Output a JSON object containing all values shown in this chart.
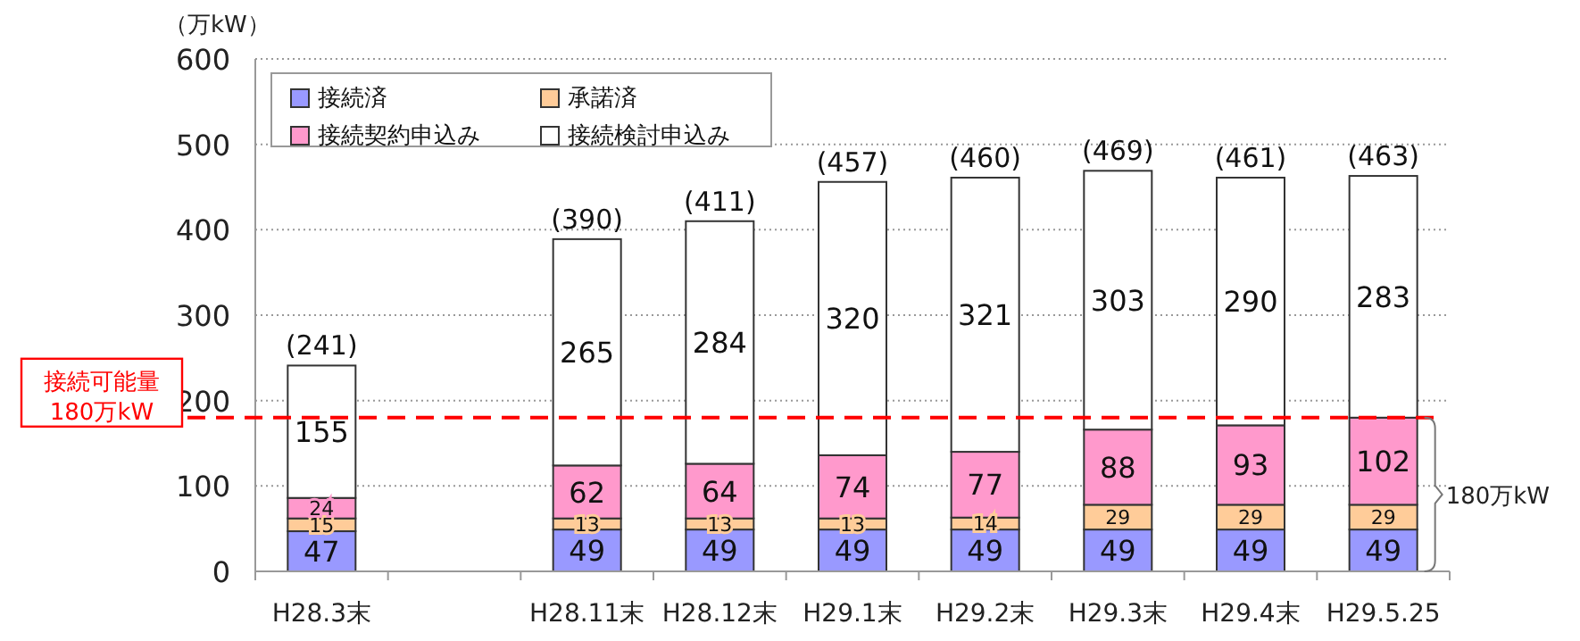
{
  "chart_data": {
    "type": "bar",
    "stacked": true,
    "ylabel": "（万kW）",
    "categories": [
      "H28.3末",
      null,
      "H28.11末",
      "H28.12末",
      "H29.1末",
      "H29.2末",
      "H29.3末",
      "H29.4末",
      "H29.5.25"
    ],
    "series": [
      {
        "name": "接続済",
        "color": "#9999ff",
        "values": [
          47,
          null,
          49,
          49,
          49,
          49,
          49,
          49,
          49
        ]
      },
      {
        "name": "承諾済",
        "color": "#ffcc99",
        "values": [
          15,
          null,
          13,
          13,
          13,
          14,
          29,
          29,
          29
        ]
      },
      {
        "name": "接続契約申込み",
        "color": "#ff99cc",
        "values": [
          24,
          null,
          62,
          64,
          74,
          77,
          88,
          93,
          102
        ]
      },
      {
        "name": "接続検討申込み",
        "color": "#ffffff",
        "values": [
          155,
          null,
          265,
          284,
          320,
          321,
          303,
          290,
          283
        ]
      }
    ],
    "totals": [
      "(241)",
      null,
      "(390)",
      "(411)",
      "(457)",
      "(460)",
      "(469)",
      "(461)",
      "(463)"
    ],
    "data_labels": true,
    "ylim": [
      0,
      600
    ],
    "yticks": [
      0,
      100,
      200,
      300,
      400,
      500,
      600
    ],
    "grid": "y",
    "legend": "top left",
    "ref_lines": [
      {
        "axis": "y",
        "value": 180,
        "label": "接続可能量\n180万kW",
        "color": "#ff0000",
        "line_style": "dashed"
      }
    ],
    "annotations": [
      "180万kW"
    ]
  }
}
